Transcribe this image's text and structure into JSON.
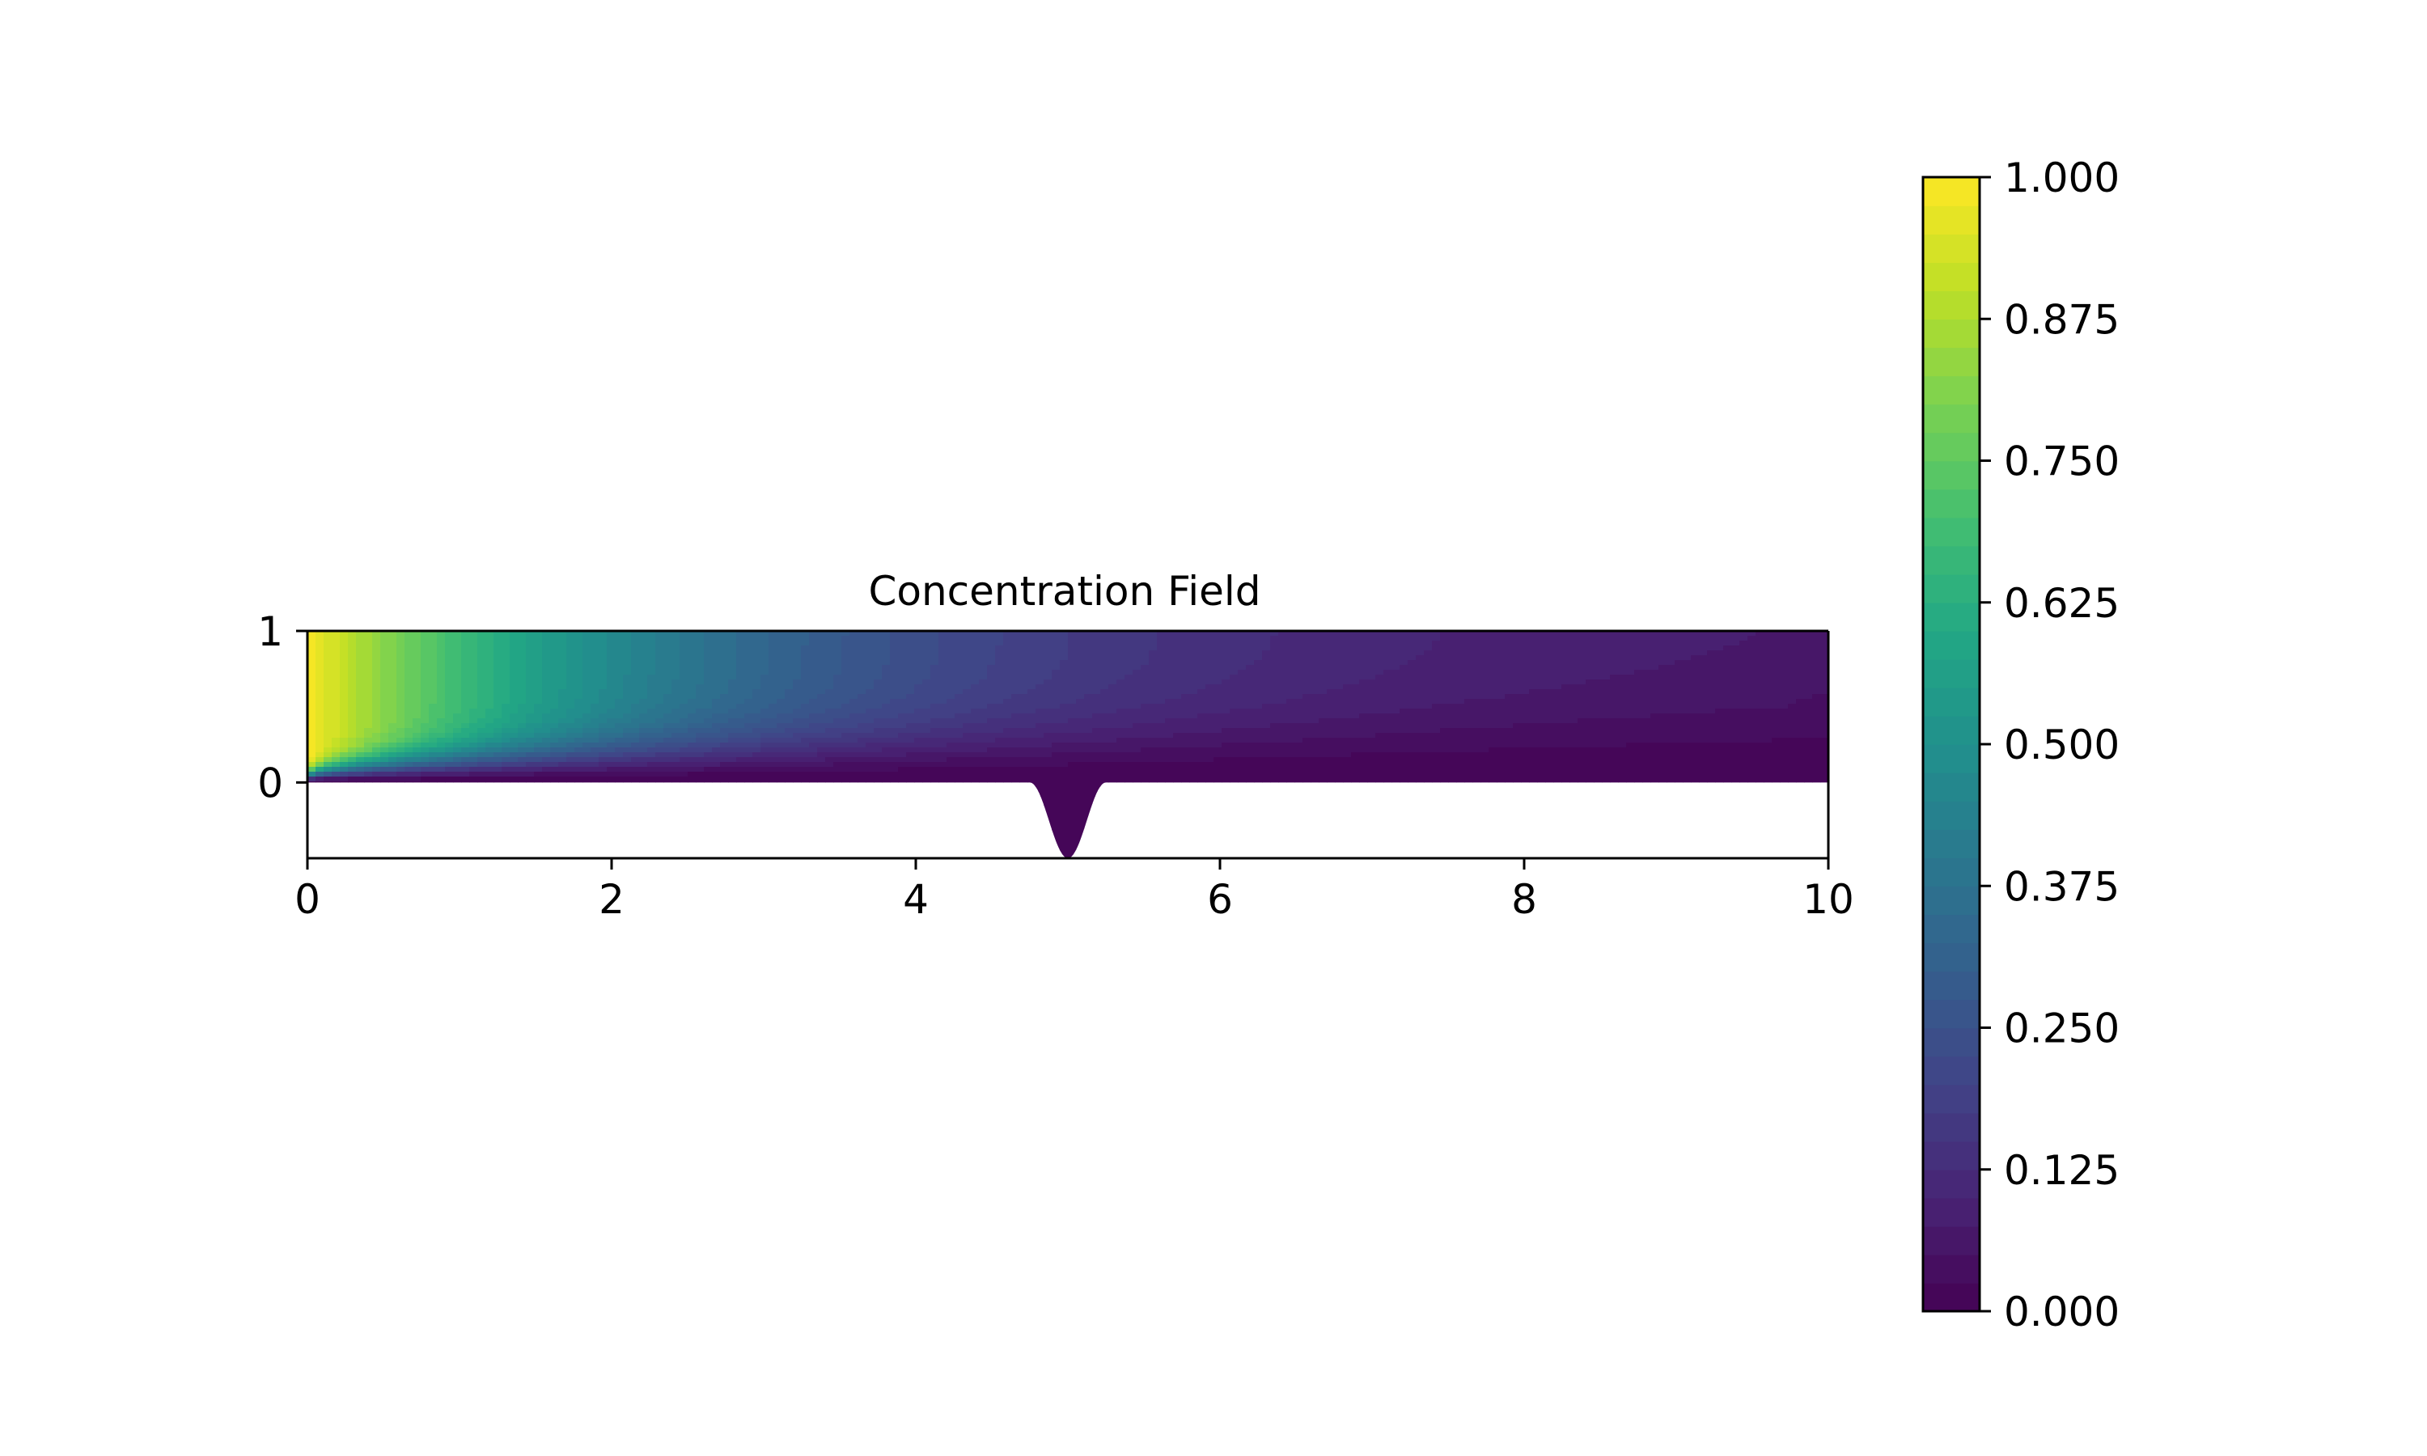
{
  "chart_data": {
    "type": "heatmap",
    "title": "Concentration Field",
    "xlabel": "",
    "ylabel": "",
    "xlim": [
      0,
      10
    ],
    "ylim": [
      -0.5,
      1
    ],
    "x_ticks": [
      "0",
      "2",
      "4",
      "6",
      "8",
      "10"
    ],
    "y_ticks": [
      "0",
      "1"
    ],
    "grid": false,
    "field": {
      "description_source": "filled contour of concentration over a channel domain",
      "inlet_value": 1.0,
      "outlet_value": 0.0
    },
    "domain": {
      "channel_x": [
        0,
        10
      ],
      "channel_y": [
        0,
        1
      ],
      "cavity_center_x": 5.0,
      "cavity_half_width": 0.25,
      "cavity_depth": 0.5
    },
    "colorbar": {
      "min": 0.0,
      "max": 1.0,
      "ticks": [
        "0.000",
        "0.125",
        "0.250",
        "0.375",
        "0.500",
        "0.625",
        "0.750",
        "0.875",
        "1.000"
      ],
      "levels": 40,
      "colormap": "viridis"
    }
  }
}
